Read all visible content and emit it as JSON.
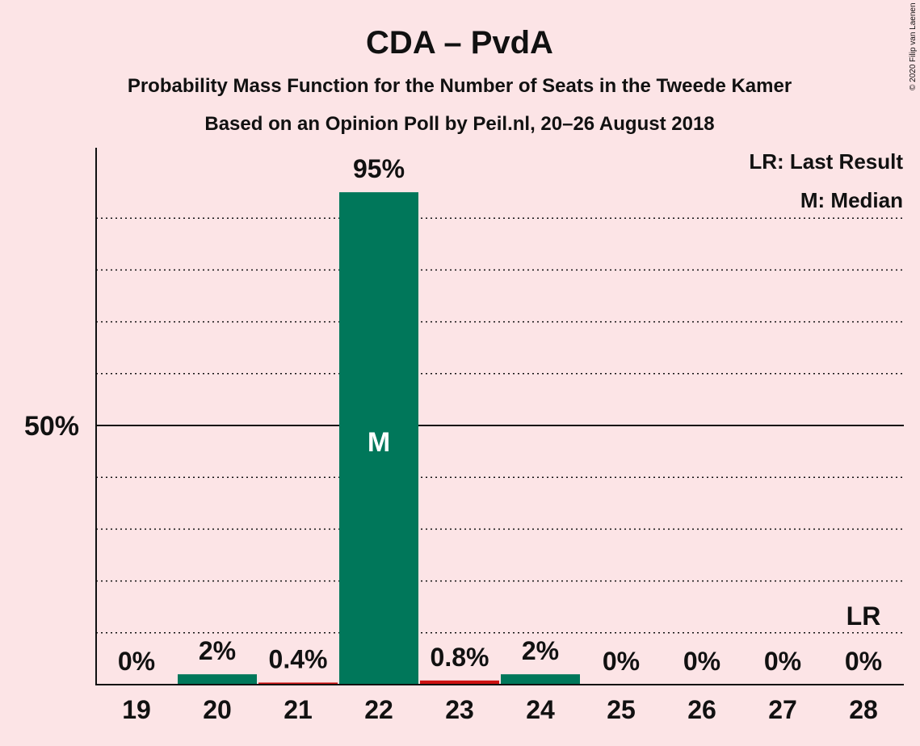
{
  "title": "CDA – PvdA",
  "subtitle1": "Probability Mass Function for the Number of Seats in the Tweede Kamer",
  "subtitle2": "Based on an Opinion Poll by Peil.nl, 20–26 August 2018",
  "copyright": "© 2020 Filip van Laenen",
  "legend": {
    "last_result": "LR: Last Result",
    "median": "M: Median"
  },
  "colors": {
    "background": "#fce4e6",
    "bar_primary": "#00775a",
    "bar_secondary": "#cc1111",
    "gridline": "#111111"
  },
  "chart_data": {
    "type": "bar",
    "categories": [
      "19",
      "20",
      "21",
      "22",
      "23",
      "24",
      "25",
      "26",
      "27",
      "28"
    ],
    "values": [
      0,
      2,
      0.4,
      95,
      0.8,
      2,
      0,
      0,
      0,
      0
    ],
    "data_labels": [
      "0%",
      "2%",
      "0.4%",
      "95%",
      "0.8%",
      "2%",
      "0%",
      "0%",
      "0%",
      "0%"
    ],
    "bar_colors": [
      "#00775a",
      "#00775a",
      "#cc1111",
      "#00775a",
      "#cc1111",
      "#00775a",
      "#00775a",
      "#00775a",
      "#00775a",
      "#00775a"
    ],
    "ylim": [
      0,
      100
    ],
    "yticks": [
      {
        "value": 50,
        "label": "50%"
      }
    ],
    "minor_gridlines": [
      10,
      20,
      30,
      40,
      60,
      70,
      80,
      90
    ],
    "median_category": "22",
    "median_marker": "M",
    "last_result_category": "28",
    "last_result_marker": "LR",
    "grid": true,
    "legend_position": "top-right"
  }
}
